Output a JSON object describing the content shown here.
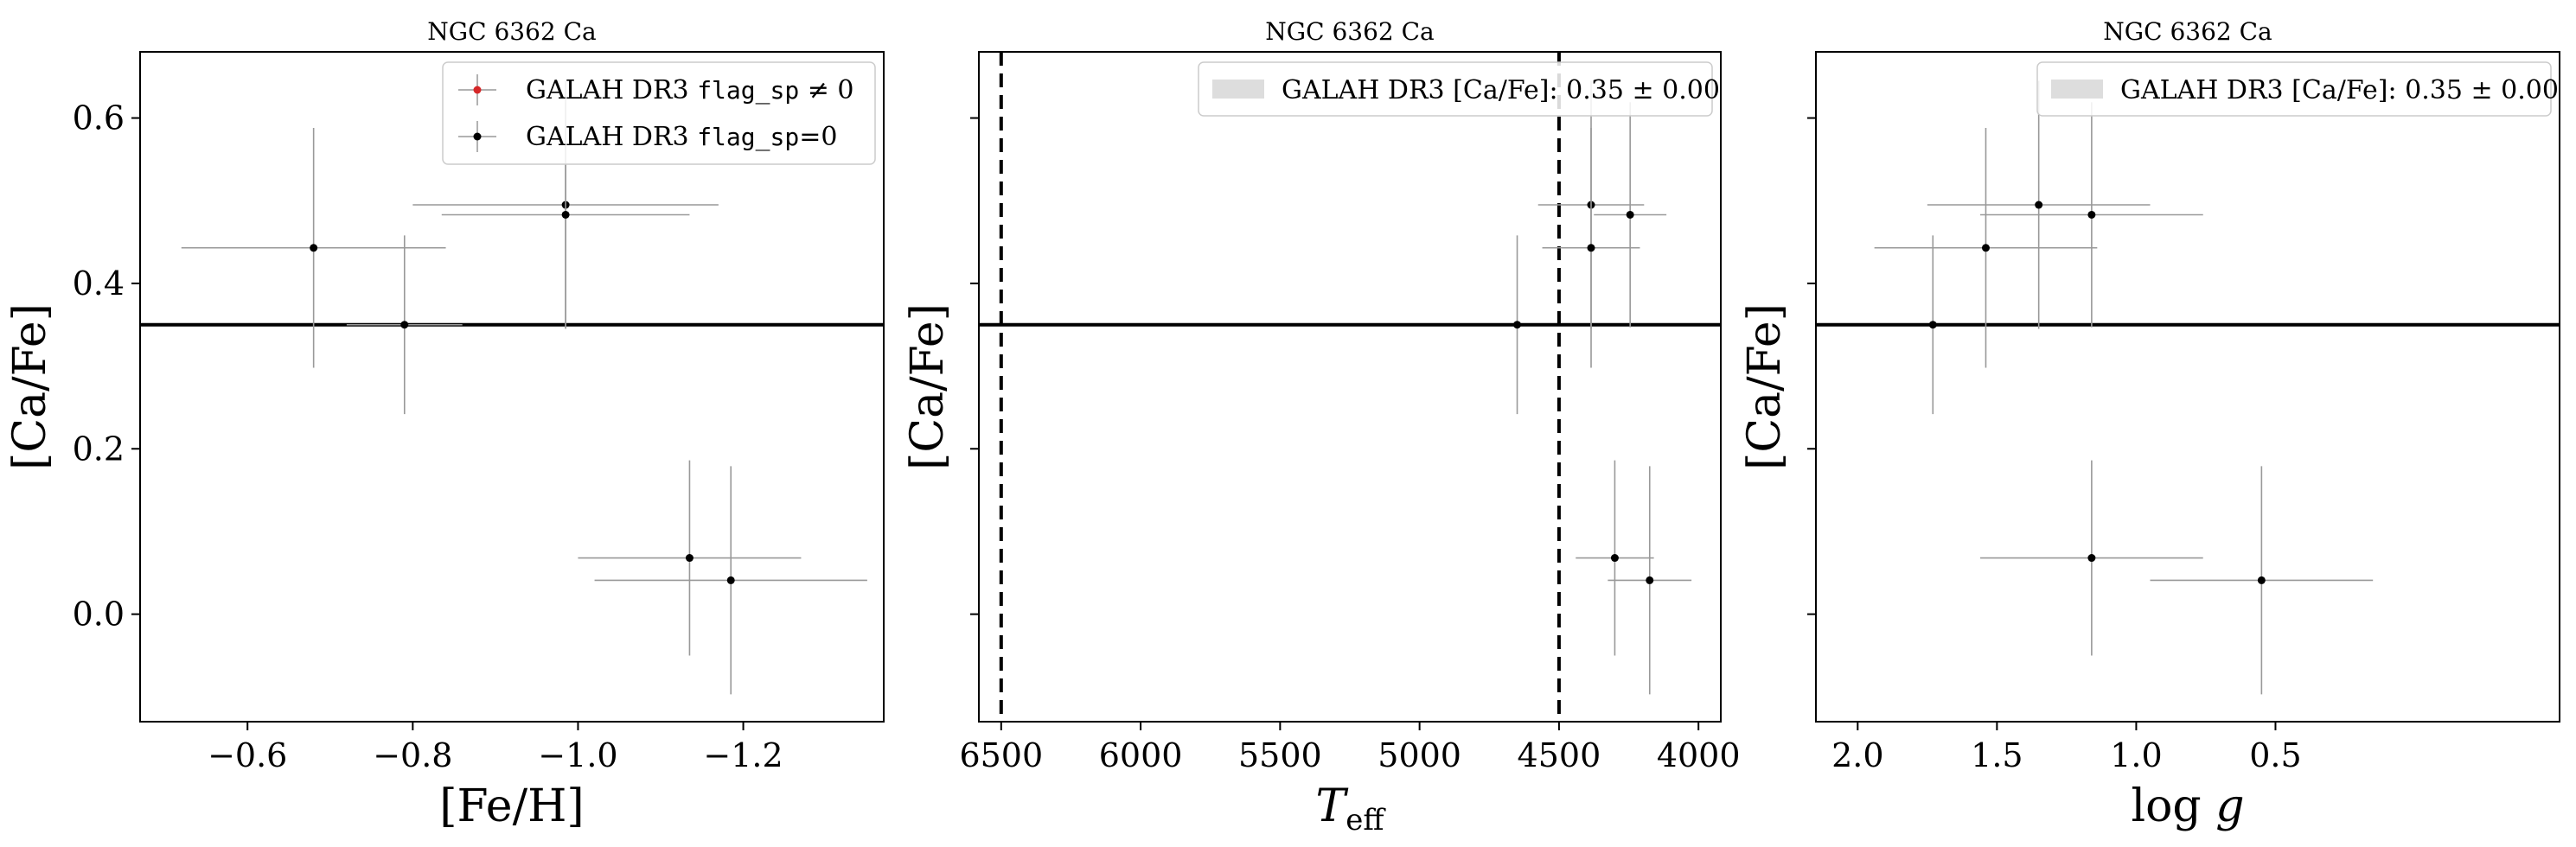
{
  "chart_data": [
    {
      "type": "scatter",
      "title": "NGC 6362 Ca",
      "xlabel": "[Fe/H]",
      "ylabel": "[Ca/Fe]",
      "xlim": [
        -0.47,
        -1.37
      ],
      "ylim": [
        -0.13,
        0.68
      ],
      "xticks": [
        -0.6,
        -0.8,
        -1.0,
        -1.2
      ],
      "xtick_labels": [
        "−0.6",
        "−0.8",
        "−1.0",
        "−1.2"
      ],
      "yticks": [
        0.0,
        0.2,
        0.4,
        0.6
      ],
      "ytick_labels": [
        "0.0",
        "0.2",
        "0.4",
        "0.6"
      ],
      "hline": 0.35,
      "vlines": [],
      "legend": {
        "placement": "top-right",
        "entries": [
          {
            "pre": "GALAH DR3 ",
            "mono": "flag_sp",
            "post": " ≠ 0",
            "marker": "point-errorbar",
            "color": "#d62728"
          },
          {
            "pre": "GALAH DR3 ",
            "mono": "flag_sp",
            "post": "=0",
            "marker": "point-errorbar",
            "color": "#000000"
          }
        ]
      },
      "points": [
        {
          "x": -0.68,
          "y": 0.443,
          "xerr": 0.16,
          "yerr": 0.145
        },
        {
          "x": -0.79,
          "y": 0.35,
          "xerr": 0.07,
          "yerr": 0.108
        },
        {
          "x": -0.985,
          "y": 0.495,
          "xerr": 0.185,
          "yerr": 0.15
        },
        {
          "x": -0.985,
          "y": 0.483,
          "xerr": 0.15,
          "yerr": 0.136
        },
        {
          "x": -1.135,
          "y": 0.068,
          "xerr": 0.135,
          "yerr": 0.118
        },
        {
          "x": -1.185,
          "y": 0.041,
          "xerr": 0.165,
          "yerr": 0.138
        }
      ]
    },
    {
      "type": "scatter",
      "title": "NGC 6362 Ca",
      "xlabel": "T_eff",
      "ylabel": "[Ca/Fe]",
      "xlim": [
        6580,
        3920
      ],
      "ylim": [
        -0.13,
        0.68
      ],
      "xticks": [
        6500,
        6000,
        5500,
        5000,
        4500,
        4000
      ],
      "xtick_labels": [
        "6500",
        "6000",
        "5500",
        "5000",
        "4500",
        "4000"
      ],
      "yticks": [
        0.0,
        0.2,
        0.4,
        0.6
      ],
      "ytick_labels": [
        "",
        "",
        "",
        ""
      ],
      "hline": 0.35,
      "vlines": [
        6500,
        4500
      ],
      "legend": {
        "placement": "top-right",
        "entries": [
          {
            "pre": "GALAH DR3 [Ca/Fe]: ",
            "math": "0.35 ± 0.00",
            "marker": "band",
            "color": "#dddddd"
          }
        ]
      },
      "points": [
        {
          "x": 4650,
          "y": 0.35,
          "xerr": 0,
          "yerr": 0.108
        },
        {
          "x": 4385,
          "y": 0.495,
          "xerr": 0.5,
          "yerr": 0.15,
          "xerr_abs": 190
        },
        {
          "x": 4385,
          "y": 0.443,
          "xerr_abs": 175,
          "yerr": 0.145
        },
        {
          "x": 4245,
          "y": 0.483,
          "xerr_abs": 130,
          "yerr": 0.136
        },
        {
          "x": 4300,
          "y": 0.068,
          "xerr_abs": 140,
          "yerr": 0.118
        },
        {
          "x": 4175,
          "y": 0.041,
          "xerr_abs": 150,
          "yerr": 0.138
        }
      ]
    },
    {
      "type": "scatter",
      "title": "NGC 6362 Ca",
      "xlabel": "log g",
      "ylabel": "[Ca/Fe]",
      "xlim": [
        2.15,
        -0.52
      ],
      "ylim": [
        -0.13,
        0.68
      ],
      "xticks": [
        2.0,
        1.5,
        1.0,
        0.5
      ],
      "xtick_labels": [
        "2.0",
        "1.5",
        "1.0",
        "0.5"
      ],
      "yticks": [
        0.0,
        0.2,
        0.4,
        0.6
      ],
      "ytick_labels": [
        "",
        "",
        "",
        ""
      ],
      "hline": 0.35,
      "vlines": [],
      "legend": {
        "placement": "top-right",
        "entries": [
          {
            "pre": "GALAH DR3 [Ca/Fe]: ",
            "math": "0.35 ± 0.00",
            "marker": "band",
            "color": "#dddddd"
          }
        ]
      },
      "points": [
        {
          "x": 1.73,
          "y": 0.35,
          "xerr_abs": 0,
          "yerr": 0.108
        },
        {
          "x": 1.54,
          "y": 0.443,
          "xerr_abs": 0.4,
          "yerr": 0.145
        },
        {
          "x": 1.35,
          "y": 0.495,
          "xerr_abs": 0.4,
          "yerr": 0.15
        },
        {
          "x": 1.16,
          "y": 0.483,
          "xerr_abs": 0.4,
          "yerr": 0.136
        },
        {
          "x": 1.16,
          "y": 0.068,
          "xerr_abs": 0.4,
          "yerr": 0.118
        },
        {
          "x": 0.55,
          "y": 0.041,
          "xerr_abs": 0.4,
          "yerr": 0.138
        }
      ]
    }
  ]
}
